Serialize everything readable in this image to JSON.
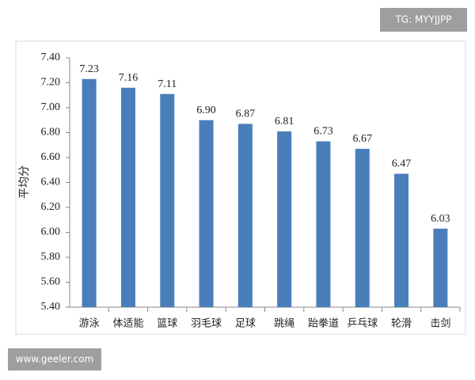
{
  "chart_data": {
    "type": "bar",
    "ylabel": "平均分",
    "categories": [
      "游泳",
      "体适能",
      "篮球",
      "羽毛球",
      "足球",
      "跳绳",
      "跆拳道",
      "乒乓球",
      "轮滑",
      "击剑"
    ],
    "values": [
      7.23,
      7.16,
      7.11,
      6.9,
      6.87,
      6.81,
      6.73,
      6.67,
      6.47,
      6.03
    ],
    "value_labels": [
      "7.23",
      "7.16",
      "7.11",
      "6.90",
      "6.87",
      "6.81",
      "6.73",
      "6.67",
      "6.47",
      "6.03"
    ],
    "color": "#4a7ebb",
    "ylim": [
      5.4,
      7.4
    ],
    "yticks": [
      {
        "value": 5.4,
        "label": "5.40"
      },
      {
        "value": 5.6,
        "label": "5.60"
      },
      {
        "value": 5.8,
        "label": "5.80"
      },
      {
        "value": 6.0,
        "label": "6.00"
      },
      {
        "value": 6.2,
        "label": "6.20"
      },
      {
        "value": 6.4,
        "label": "6.40"
      },
      {
        "value": 6.6,
        "label": "6.60"
      },
      {
        "value": 6.8,
        "label": "6.80"
      },
      {
        "value": 7.0,
        "label": "7.00"
      },
      {
        "value": 7.2,
        "label": "7.20"
      },
      {
        "value": 7.4,
        "label": "7.40"
      }
    ],
    "grid": false,
    "annotations": [
      "TG: MYYJJPP",
      "www.geeler.com"
    ]
  }
}
